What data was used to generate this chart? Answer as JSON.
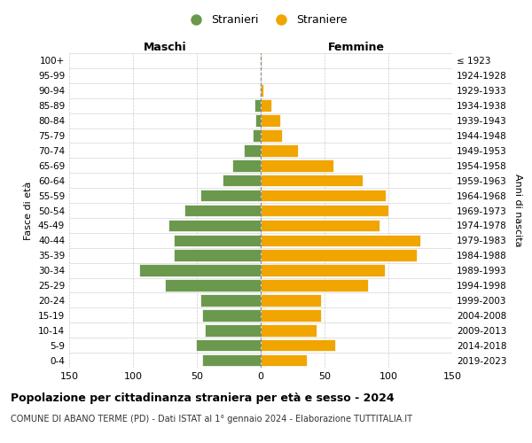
{
  "age_groups": [
    "0-4",
    "5-9",
    "10-14",
    "15-19",
    "20-24",
    "25-29",
    "30-34",
    "35-39",
    "40-44",
    "45-49",
    "50-54",
    "55-59",
    "60-64",
    "65-69",
    "70-74",
    "75-79",
    "80-84",
    "85-89",
    "90-94",
    "95-99",
    "100+"
  ],
  "birth_years": [
    "2019-2023",
    "2014-2018",
    "2009-2013",
    "2004-2008",
    "1999-2003",
    "1994-1998",
    "1989-1993",
    "1984-1988",
    "1979-1983",
    "1974-1978",
    "1969-1973",
    "1964-1968",
    "1959-1963",
    "1954-1958",
    "1949-1953",
    "1944-1948",
    "1939-1943",
    "1934-1938",
    "1929-1933",
    "1924-1928",
    "≤ 1923"
  ],
  "maschi": [
    46,
    51,
    44,
    46,
    47,
    75,
    95,
    68,
    68,
    72,
    60,
    47,
    30,
    22,
    13,
    6,
    4,
    5,
    1,
    0,
    0
  ],
  "femmine": [
    36,
    58,
    44,
    47,
    47,
    84,
    97,
    122,
    125,
    93,
    100,
    98,
    80,
    57,
    29,
    17,
    15,
    8,
    2,
    0,
    1
  ],
  "color_maschi": "#6a994e",
  "color_femmine": "#f0a500",
  "background_color": "#ffffff",
  "grid_color": "#cccccc",
  "title": "Popolazione per cittadinanza straniera per età e sesso - 2024",
  "subtitle": "COMUNE DI ABANO TERME (PD) - Dati ISTAT al 1° gennaio 2024 - Elaborazione TUTTITALIA.IT",
  "label_maschi": "Maschi",
  "label_femmine": "Femmine",
  "ylabel_left": "Fasce di età",
  "ylabel_right": "Anni di nascita",
  "legend_maschi": "Stranieri",
  "legend_femmine": "Straniere",
  "xlim": 150
}
